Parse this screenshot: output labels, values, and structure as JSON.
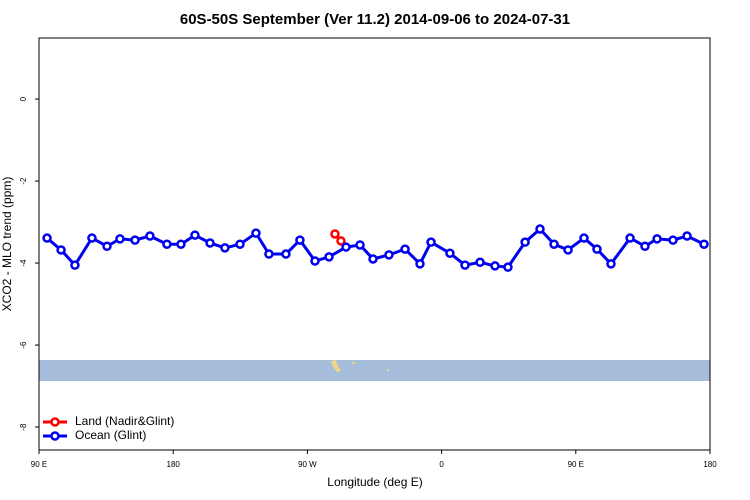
{
  "chart_data": {
    "type": "line",
    "title": "60S-50S September (Ver 11.2)   2014-09-06 to 2024-07-31",
    "x_label": "Longitude (deg E)",
    "y_label": "XCO2 - MLO trend (ppm)",
    "xlim": [
      90,
      540
    ],
    "ylim": [
      -8.56,
      1.49
    ],
    "xticks": [
      {
        "value": 90,
        "label": "90 E"
      },
      180,
      {
        "value": 270,
        "label": "90 W"
      },
      {
        "value": 360,
        "label": "0"
      },
      {
        "value": 450,
        "label": "90 E"
      },
      {
        "value": 540,
        "label": "180"
      }
    ],
    "yticks": [
      0,
      -2,
      -4,
      -6,
      -8
    ],
    "legend": "bottom-left",
    "series": [
      {
        "name": "Land (Nadir&Glint)",
        "color": "#ff0000",
        "x": [
          288.5,
          292.5
        ],
        "values": [
          -3.29,
          -3.46
        ]
      },
      {
        "name": "Ocean (Glint)",
        "color": "#0000ee",
        "x": [
          95.4,
          104.8,
          114.1,
          125.5,
          135.6,
          144.3,
          154.4,
          164.4,
          175.8,
          185.2,
          194.6,
          204.7,
          214.7,
          224.8,
          235.5,
          244.2,
          255.6,
          265.0,
          275.1,
          284.5,
          295.9,
          305.3,
          314.0,
          324.7,
          335.5,
          345.5,
          352.9,
          365.6,
          375.7,
          385.8,
          395.8,
          404.5,
          416.0,
          426.0,
          435.4,
          444.8,
          455.5,
          464.2,
          473.6,
          486.4,
          496.4,
          504.5,
          515.2,
          524.6,
          536.0
        ],
        "values": [
          -3.39,
          -3.68,
          -4.05,
          -3.39,
          -3.59,
          -3.41,
          -3.44,
          -3.34,
          -3.54,
          -3.54,
          -3.32,
          -3.51,
          -3.63,
          -3.54,
          -3.27,
          -3.78,
          -3.78,
          -3.44,
          -3.95,
          -3.85,
          -3.61,
          -3.56,
          -3.9,
          -3.8,
          -3.66,
          -4.02,
          -3.49,
          -3.76,
          -4.05,
          -3.98,
          -4.07,
          -4.1,
          -3.49,
          -3.17,
          -3.54,
          -3.68,
          -3.39,
          -3.66,
          -4.02,
          -3.39,
          -3.59,
          -3.41,
          -3.44,
          -3.34,
          -3.54
        ]
      }
    ]
  }
}
